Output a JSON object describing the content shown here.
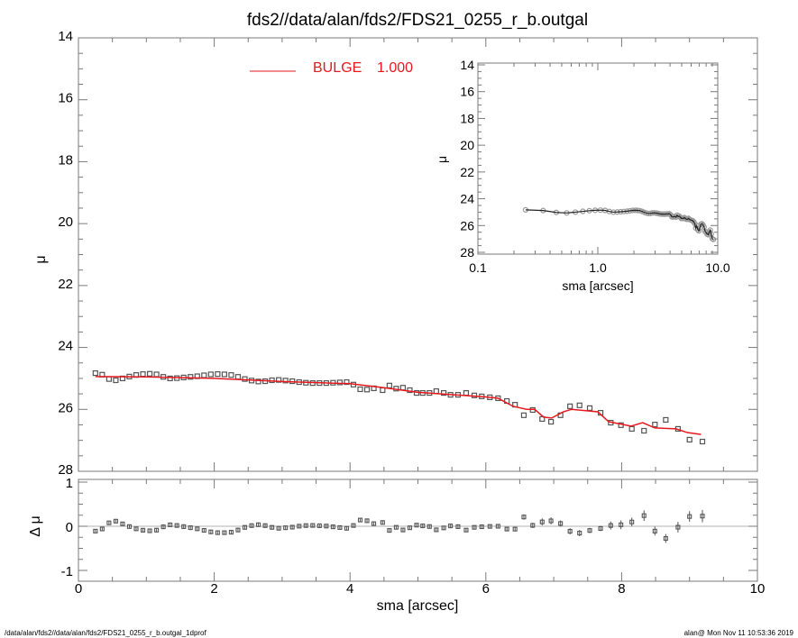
{
  "colors": {
    "model": "#e8191c",
    "data": "#555555",
    "axis": "#7a7a7a",
    "zero": "#b0b0b0",
    "inset_line": "#222222"
  },
  "footer": {
    "left": "/data/alan/fds2//data/alan/fds2/FDS21_0255_r_b.outgal_1dprof",
    "right": "alan@  Mon Nov 11 10:53:36 2019"
  },
  "chart_data": [
    {
      "type": "scatter",
      "panel": "main",
      "title": "fds2//data/alan/fds2/FDS21_0255_r_b.outgal",
      "xlabel": "sma [arcsec]",
      "ylabel": "μ",
      "xlim": [
        0,
        10
      ],
      "ylim": [
        28,
        14
      ],
      "xticks": [
        "0",
        "2",
        "4",
        "6",
        "8",
        "10"
      ],
      "yticks": [
        "14",
        "16",
        "18",
        "20",
        "22",
        "24",
        "26",
        "28"
      ],
      "legend": {
        "label": "BULGE",
        "value": "1.000",
        "placement": "top-left"
      },
      "profile": {
        "x": [
          0.25,
          0.35,
          0.45,
          0.55,
          0.65,
          0.75,
          0.85,
          0.95,
          1.05,
          1.15,
          1.25,
          1.35,
          1.45,
          1.55,
          1.65,
          1.75,
          1.85,
          1.95,
          2.05,
          2.15,
          2.25,
          2.35,
          2.45,
          2.55,
          2.65,
          2.75,
          2.85,
          2.95,
          3.05,
          3.15,
          3.25,
          3.35,
          3.45,
          3.55,
          3.65,
          3.75,
          3.85,
          3.95,
          4.05,
          4.15,
          4.25,
          4.35,
          4.48,
          4.58,
          4.68,
          4.78,
          4.88,
          4.98,
          5.07,
          5.17,
          5.27,
          5.38,
          5.48,
          5.59,
          5.71,
          5.83,
          5.94,
          6.06,
          6.18,
          6.31,
          6.43,
          6.56,
          6.69,
          6.83,
          6.96,
          7.1,
          7.24,
          7.38,
          7.53,
          7.69,
          7.84,
          7.99,
          8.15,
          8.33,
          8.49,
          8.65,
          8.83,
          9.0,
          9.19
        ],
        "mu": [
          24.83,
          24.88,
          25.02,
          25.06,
          25.0,
          24.94,
          24.89,
          24.86,
          24.85,
          24.87,
          24.95,
          25.0,
          24.99,
          24.97,
          24.95,
          24.93,
          24.9,
          24.87,
          24.86,
          24.87,
          24.89,
          24.95,
          25.02,
          25.07,
          25.1,
          25.09,
          25.06,
          25.05,
          25.07,
          25.09,
          25.12,
          25.14,
          25.15,
          25.15,
          25.15,
          25.14,
          25.13,
          25.12,
          25.2,
          25.35,
          25.36,
          25.32,
          25.38,
          25.23,
          25.33,
          25.3,
          25.38,
          25.47,
          25.47,
          25.47,
          25.41,
          25.47,
          25.53,
          25.53,
          25.47,
          25.55,
          25.58,
          25.61,
          25.64,
          25.73,
          25.85,
          26.19,
          26.02,
          26.31,
          26.4,
          26.19,
          25.9,
          25.87,
          25.96,
          26.11,
          26.43,
          26.51,
          26.63,
          26.69,
          26.49,
          26.34,
          26.63,
          26.98,
          27.04
        ],
        "err": [
          0.03,
          0.03,
          0.03,
          0.03,
          0.04,
          0.04,
          0.04,
          0.05,
          0.05,
          0.05,
          0.05,
          0.05,
          0.05,
          0.05,
          0.05,
          0.05,
          0.05,
          0.05,
          0.05,
          0.05,
          0.05,
          0.05,
          0.05,
          0.05,
          0.05,
          0.05,
          0.05,
          0.05,
          0.04,
          0.04,
          0.04,
          0.04,
          0.04,
          0.04,
          0.04,
          0.04,
          0.04,
          0.04,
          0.04,
          0.04,
          0.04,
          0.04,
          0.04,
          0.04,
          0.04,
          0.04,
          0.04,
          0.04,
          0.04,
          0.04,
          0.04,
          0.04,
          0.04,
          0.04,
          0.04,
          0.04,
          0.04,
          0.04,
          0.04,
          0.04,
          0.05,
          0.06,
          0.06,
          0.08,
          0.08,
          0.07,
          0.07,
          0.07,
          0.06,
          0.06,
          0.09,
          0.1,
          0.1,
          0.12,
          0.1,
          0.1,
          0.12,
          0.12,
          0.14
        ]
      },
      "model": {
        "name": "BULGE",
        "x": [
          0.25,
          1.0,
          2.0,
          3.0,
          4.0,
          4.5,
          5.0,
          6.0,
          6.18,
          6.4,
          6.6,
          6.72,
          6.85,
          6.97,
          7.14,
          7.26,
          7.65,
          7.81,
          8.14,
          8.31,
          8.49,
          8.8,
          8.97,
          9.17
        ],
        "mu": [
          24.94,
          24.95,
          25.0,
          25.1,
          25.17,
          25.3,
          25.45,
          25.6,
          25.64,
          25.9,
          26.0,
          26.0,
          26.25,
          26.28,
          26.08,
          26.0,
          26.08,
          26.4,
          26.54,
          26.43,
          26.6,
          26.63,
          26.75,
          26.81
        ]
      }
    },
    {
      "type": "scatter",
      "panel": "residual",
      "ylabel": "Δ μ",
      "xlim": [
        0,
        10
      ],
      "ylim": [
        -1,
        1
      ],
      "yticks": [
        "1",
        "0",
        "-1"
      ],
      "definition": "profile mu minus model mu"
    },
    {
      "type": "line",
      "panel": "inset",
      "xlabel": "sma [arcsec]",
      "ylabel": "μ",
      "xscale": "log",
      "xlim": [
        0.1,
        10
      ],
      "ylim": [
        28,
        14
      ],
      "xticks": [
        "0.1",
        "1.0",
        "10.0"
      ],
      "yticks": [
        "14",
        "16",
        "18",
        "20",
        "22",
        "24",
        "26",
        "28"
      ]
    }
  ]
}
